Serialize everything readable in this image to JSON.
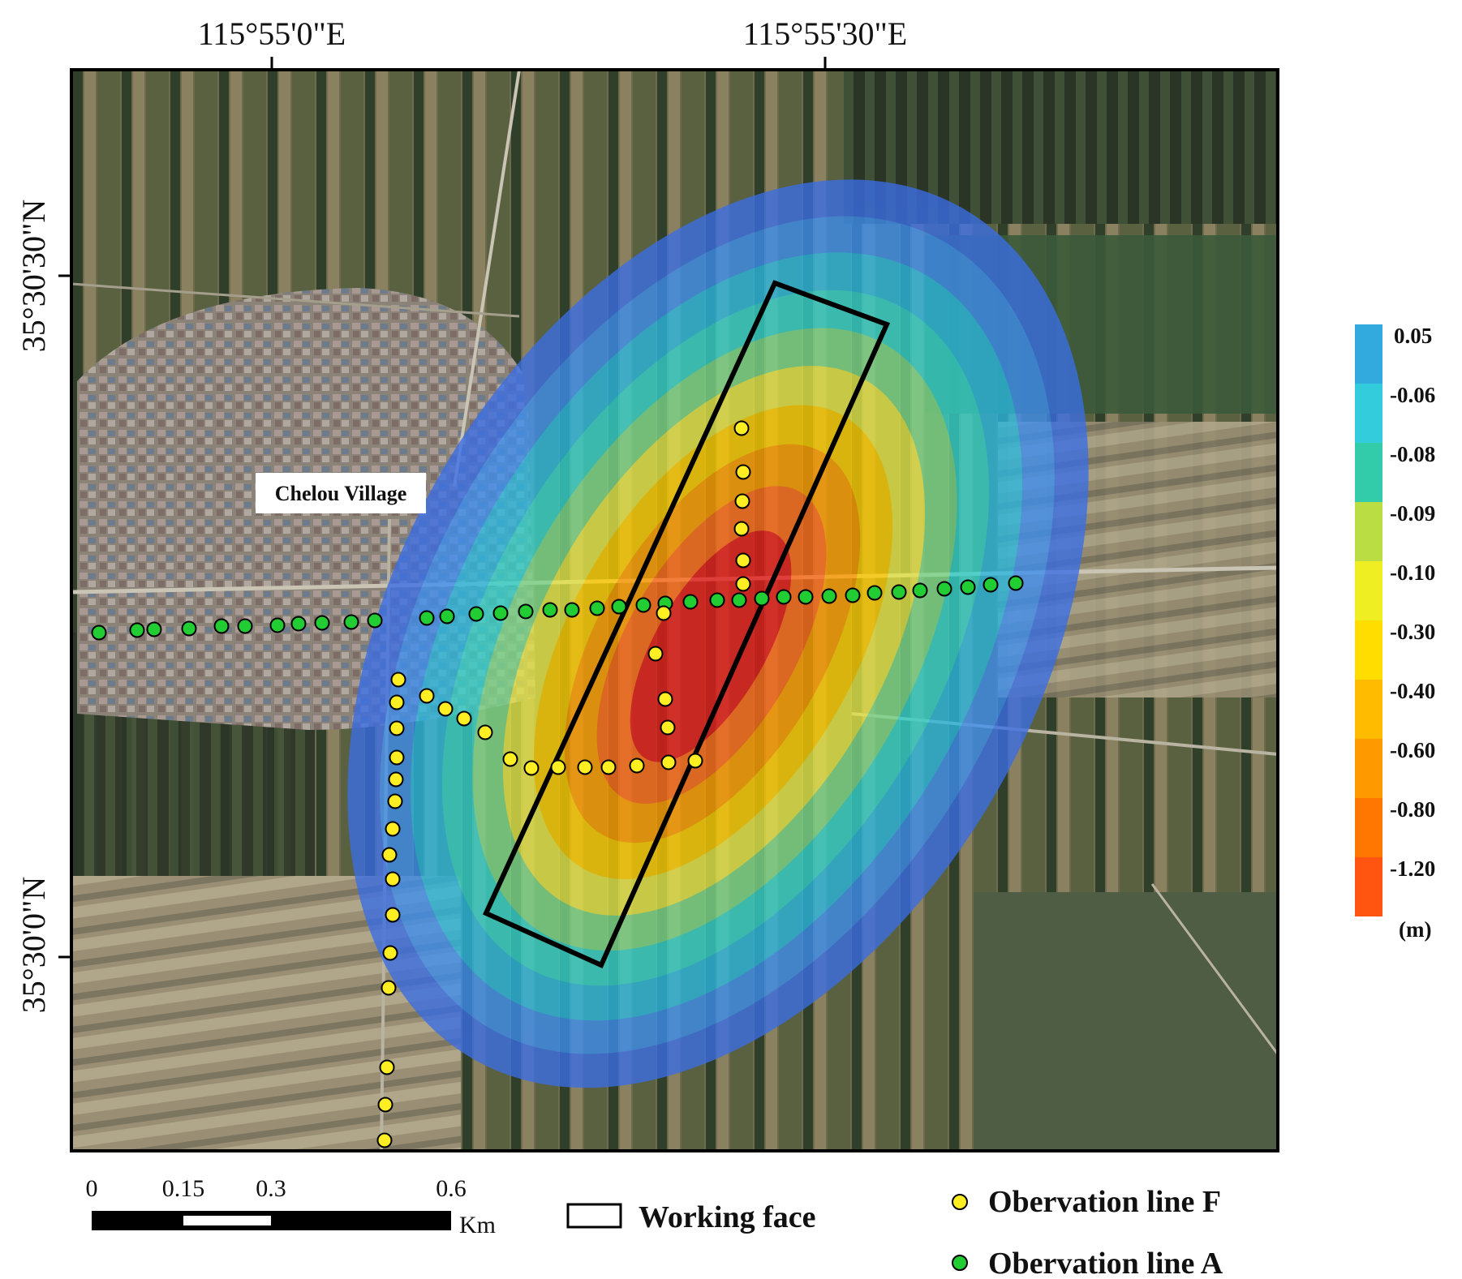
{
  "map": {
    "lon_labels": [
      "115°55'0\"E",
      "115°55'30\"E"
    ],
    "lat_labels": [
      "35°30'30\"N",
      "35°30'0\"N"
    ],
    "village_label": "Chelou Village"
  },
  "subsidence_legend": {
    "unit": "(m)",
    "classes": [
      {
        "label": "0.05",
        "color": "#33aadd"
      },
      {
        "label": "-0.06",
        "color": "#33ccdd"
      },
      {
        "label": "-0.08",
        "color": "#33ccaa"
      },
      {
        "label": "-0.09",
        "color": "#bbdd44"
      },
      {
        "label": "-0.10",
        "color": "#eeee22"
      },
      {
        "label": "-0.30",
        "color": "#ffdd00"
      },
      {
        "label": "-0.40",
        "color": "#ffbb00"
      },
      {
        "label": "-0.60",
        "color": "#ff9900"
      },
      {
        "label": "-0.80",
        "color": "#ff7700"
      },
      {
        "label": "-1.20",
        "color": "#ff5511"
      }
    ]
  },
  "scale_bar": {
    "ticks": [
      "0",
      "0.15",
      "0.3",
      "0.6"
    ],
    "unit": "Km"
  },
  "key": {
    "working_face": "Working face",
    "line_f": "Obervation line F",
    "line_a": "Obervation line A",
    "line_f_color": "#ffee22",
    "line_a_color": "#22cc33"
  }
}
